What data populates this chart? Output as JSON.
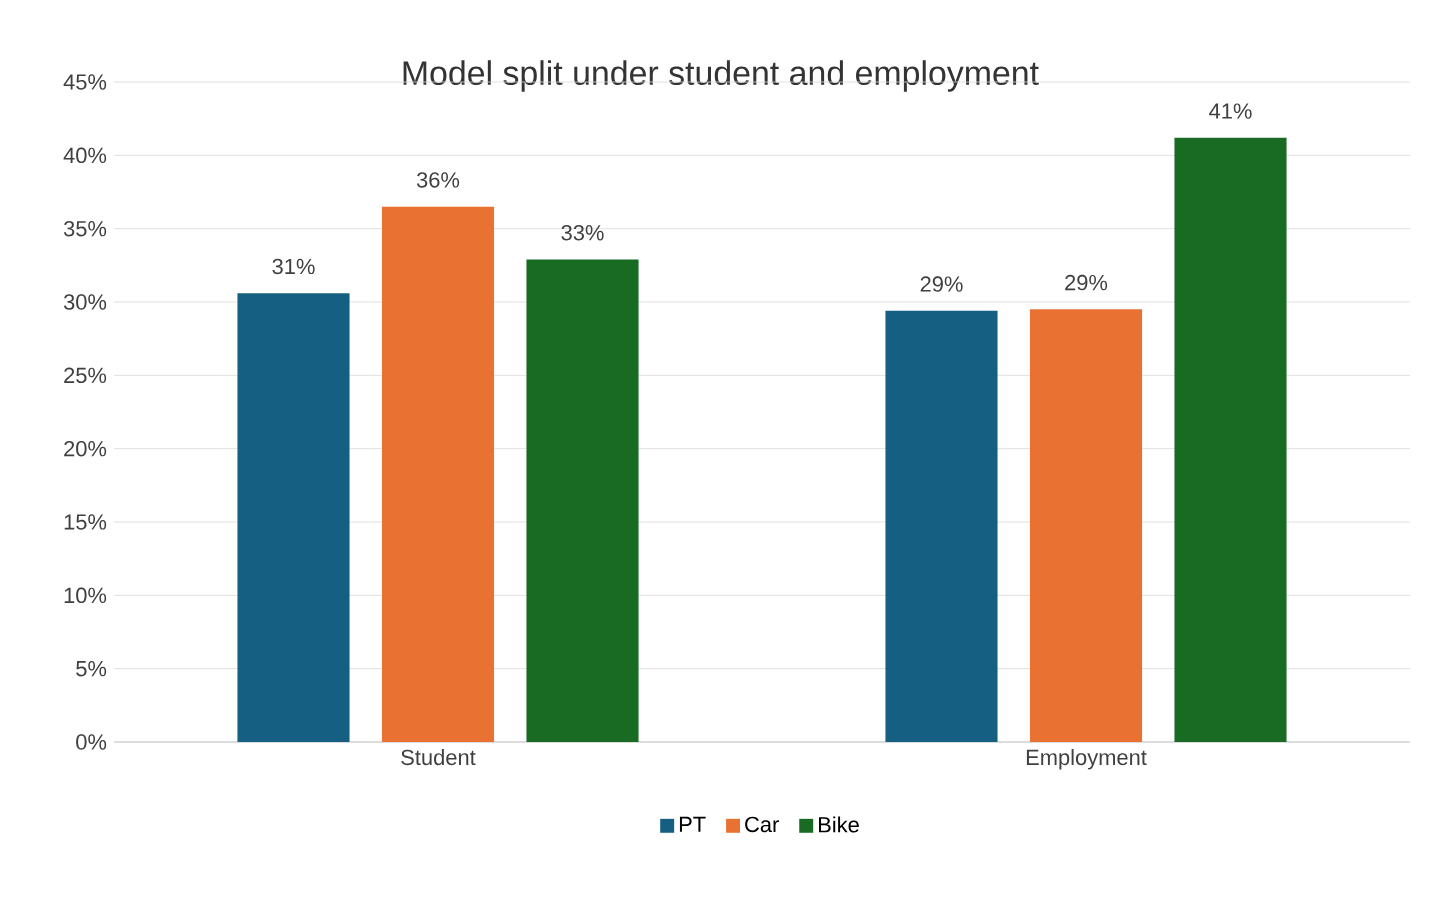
{
  "chart_data": {
    "type": "bar",
    "title": "Model split under student and employment",
    "categories": [
      "Student",
      "Employment"
    ],
    "series": [
      {
        "name": "PT",
        "color": "#156082",
        "values": [
          30.6,
          29.4
        ],
        "value_labels": [
          "31%",
          "29%"
        ]
      },
      {
        "name": "Car",
        "color": "#e97132",
        "values": [
          36.5,
          29.5
        ],
        "value_labels": [
          "36%",
          "29%"
        ]
      },
      {
        "name": "Bike",
        "color": "#196b24",
        "values": [
          32.9,
          41.2
        ],
        "value_labels": [
          "33%",
          "41%"
        ]
      }
    ],
    "ylim": [
      0,
      45
    ],
    "yticks": [
      {
        "value": 0,
        "label": "0%"
      },
      {
        "value": 5,
        "label": "5%"
      },
      {
        "value": 10,
        "label": "10%"
      },
      {
        "value": 15,
        "label": "15%"
      },
      {
        "value": 20,
        "label": "20%"
      },
      {
        "value": 25,
        "label": "25%"
      },
      {
        "value": 30,
        "label": "30%"
      },
      {
        "value": 35,
        "label": "35%"
      },
      {
        "value": 40,
        "label": "40%"
      },
      {
        "value": 45,
        "label": "45%"
      }
    ],
    "grid": "y",
    "legend": "bottom"
  }
}
